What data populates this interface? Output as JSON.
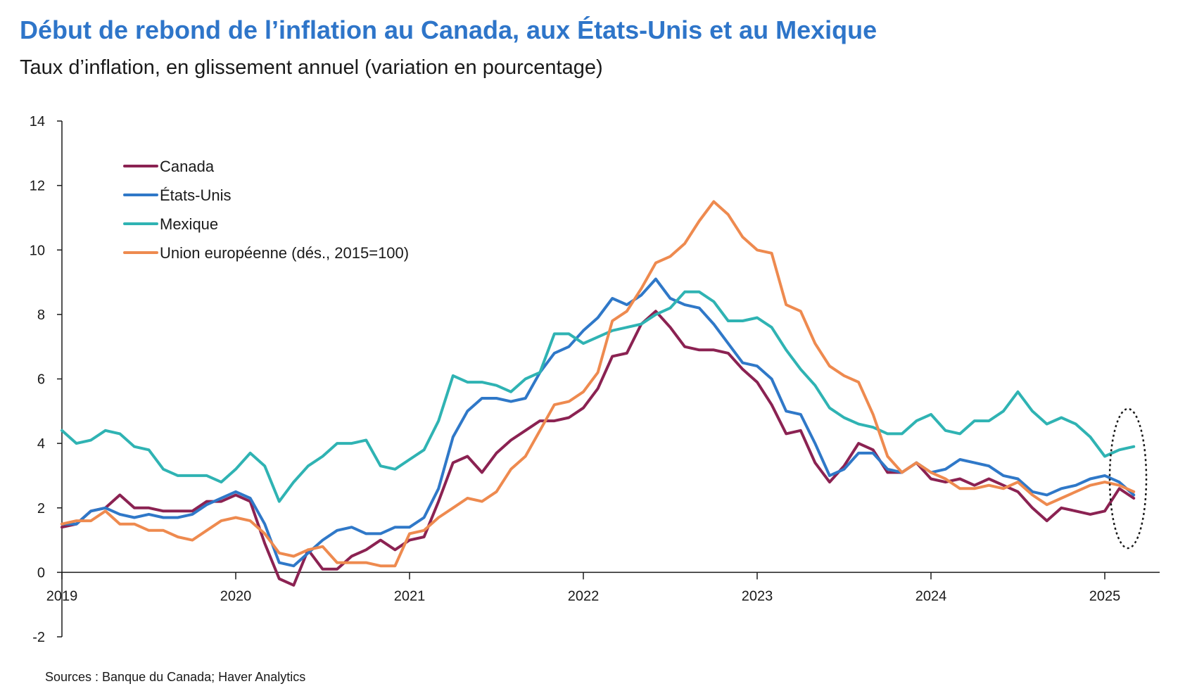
{
  "header": {
    "title": "Début de rebond de l’inflation au Canada, aux États-Unis et au Mexique",
    "subtitle": "Taux d’inflation, en glissement annuel (variation en pourcentage)"
  },
  "footer": {
    "source": "Sources : Banque du Canada; Haver Analytics"
  },
  "colors": {
    "canada": "#8b2252",
    "usa": "#2f78c8",
    "mexique": "#2fb3b3",
    "ue": "#ee8a4f",
    "axis": "#1a1a1a",
    "title": "#2e75c9"
  },
  "chart_data": {
    "type": "line",
    "title": "Début de rebond de l’inflation au Canada, aux États-Unis et au Mexique",
    "subtitle": "Taux d’inflation, en glissement annuel (variation en pourcentage)",
    "xlabel": "",
    "ylabel": "",
    "ylim": [
      -2,
      14
    ],
    "yticks": [
      "-2",
      "0",
      "2",
      "4",
      "6",
      "8",
      "10",
      "12",
      "14"
    ],
    "xlim": [
      2019.0,
      2025.3
    ],
    "xticks": [
      "2019",
      "2020",
      "2021",
      "2022",
      "2023",
      "2024",
      "2025"
    ],
    "x_start_month": "2019-01",
    "grid": false,
    "legend": "top-left",
    "annotation": "dashed ellipse around latest 2025 values",
    "series": [
      {
        "name": "Canada",
        "color": "#8b2252",
        "values": [
          1.4,
          1.5,
          1.9,
          2.0,
          2.4,
          2.0,
          2.0,
          1.9,
          1.9,
          1.9,
          2.2,
          2.2,
          2.4,
          2.2,
          0.9,
          -0.2,
          -0.4,
          0.7,
          0.1,
          0.1,
          0.5,
          0.7,
          1.0,
          0.7,
          1.0,
          1.1,
          2.2,
          3.4,
          3.6,
          3.1,
          3.7,
          4.1,
          4.4,
          4.7,
          4.7,
          4.8,
          5.1,
          5.7,
          6.7,
          6.8,
          7.7,
          8.1,
          7.6,
          7.0,
          6.9,
          6.9,
          6.8,
          6.3,
          5.9,
          5.2,
          4.3,
          4.4,
          3.4,
          2.8,
          3.3,
          4.0,
          3.8,
          3.1,
          3.1,
          3.4,
          2.9,
          2.8,
          2.9,
          2.7,
          2.9,
          2.7,
          2.5,
          2.0,
          1.6,
          2.0,
          1.9,
          1.8,
          1.9,
          2.6,
          2.3
        ]
      },
      {
        "name": "États-Unis",
        "color": "#2f78c8",
        "values": [
          1.5,
          1.5,
          1.9,
          2.0,
          1.8,
          1.7,
          1.8,
          1.7,
          1.7,
          1.8,
          2.1,
          2.3,
          2.5,
          2.3,
          1.5,
          0.3,
          0.2,
          0.6,
          1.0,
          1.3,
          1.4,
          1.2,
          1.2,
          1.4,
          1.4,
          1.7,
          2.6,
          4.2,
          5.0,
          5.4,
          5.4,
          5.3,
          5.4,
          6.2,
          6.8,
          7.0,
          7.5,
          7.9,
          8.5,
          8.3,
          8.6,
          9.1,
          8.5,
          8.3,
          8.2,
          7.7,
          7.1,
          6.5,
          6.4,
          6.0,
          5.0,
          4.9,
          4.0,
          3.0,
          3.2,
          3.7,
          3.7,
          3.2,
          3.1,
          3.4,
          3.1,
          3.2,
          3.5,
          3.4,
          3.3,
          3.0,
          2.9,
          2.5,
          2.4,
          2.6,
          2.7,
          2.9,
          3.0,
          2.8,
          2.4
        ]
      },
      {
        "name": "Mexique",
        "color": "#2fb3b3",
        "values": [
          4.4,
          4.0,
          4.1,
          4.4,
          4.3,
          3.9,
          3.8,
          3.2,
          3.0,
          3.0,
          3.0,
          2.8,
          3.2,
          3.7,
          3.3,
          2.2,
          2.8,
          3.3,
          3.6,
          4.0,
          4.0,
          4.1,
          3.3,
          3.2,
          3.5,
          3.8,
          4.7,
          6.1,
          5.9,
          5.9,
          5.8,
          5.6,
          6.0,
          6.2,
          7.4,
          7.4,
          7.1,
          7.3,
          7.5,
          7.6,
          7.7,
          8.0,
          8.2,
          8.7,
          8.7,
          8.4,
          7.8,
          7.8,
          7.9,
          7.6,
          6.9,
          6.3,
          5.8,
          5.1,
          4.8,
          4.6,
          4.5,
          4.3,
          4.3,
          4.7,
          4.9,
          4.4,
          4.3,
          4.7,
          4.7,
          5.0,
          5.6,
          5.0,
          4.6,
          4.8,
          4.6,
          4.2,
          3.6,
          3.8,
          3.9
        ]
      },
      {
        "name": "Union européenne (dés., 2015=100)",
        "color": "#ee8a4f",
        "values": [
          1.5,
          1.6,
          1.6,
          1.9,
          1.5,
          1.5,
          1.3,
          1.3,
          1.1,
          1.0,
          1.3,
          1.6,
          1.7,
          1.6,
          1.2,
          0.6,
          0.5,
          0.7,
          0.8,
          0.3,
          0.3,
          0.3,
          0.2,
          0.2,
          1.2,
          1.3,
          1.7,
          2.0,
          2.3,
          2.2,
          2.5,
          3.2,
          3.6,
          4.4,
          5.2,
          5.3,
          5.6,
          6.2,
          7.8,
          8.1,
          8.8,
          9.6,
          9.8,
          10.2,
          10.9,
          11.5,
          11.1,
          10.4,
          10.0,
          9.9,
          8.3,
          8.1,
          7.1,
          6.4,
          6.1,
          5.9,
          4.9,
          3.6,
          3.1,
          3.4,
          3.1,
          2.9,
          2.6,
          2.6,
          2.7,
          2.6,
          2.8,
          2.4,
          2.1,
          2.3,
          2.5,
          2.7,
          2.8,
          2.7,
          2.5
        ]
      }
    ]
  }
}
